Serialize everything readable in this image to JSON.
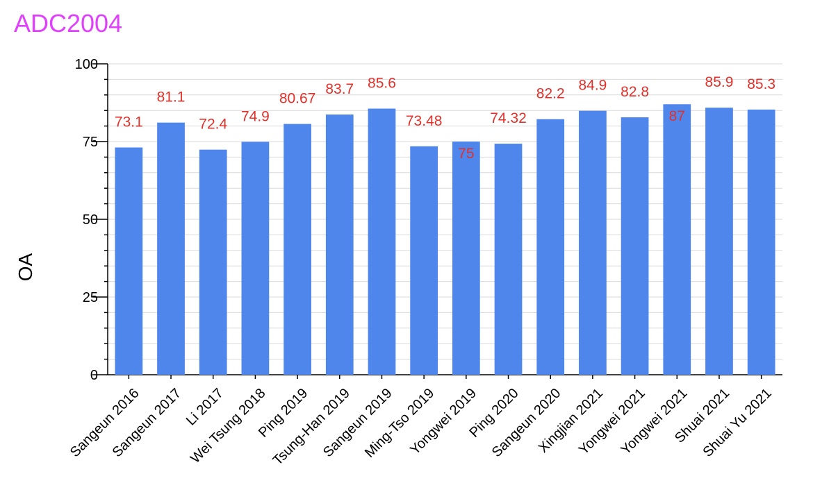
{
  "colors": {
    "title": "#e040fb",
    "bar": "#4f86ec",
    "data_label": "#e0312b",
    "grid": "#d9d9d9",
    "axis": "#000000"
  },
  "chart_data": {
    "type": "bar",
    "title": "ADC2004",
    "xlabel": "",
    "ylabel": "OA",
    "ylim": [
      0,
      100
    ],
    "yticks": [
      0,
      25,
      50,
      75,
      100
    ],
    "grid": true,
    "legend": "none",
    "categories": [
      "Sangeun 2016",
      "Sangeun 2017",
      "Li 2017",
      "Wei Tsung 2018",
      "Ping 2019",
      "Tsung-Han 2019",
      "Sangeun 2019",
      "Ming-Tso 2019",
      "Yongwei 2019",
      "Ping 2020",
      "Sangeun 2020",
      "Xingjian 2021",
      "Yongwei 2021",
      "Yongwei 2021",
      "Shuai 2021",
      "Shuai Yu 2021"
    ],
    "values": [
      73.1,
      81.1,
      72.4,
      74.9,
      80.67,
      83.7,
      85.6,
      73.48,
      75,
      74.32,
      82.2,
      84.9,
      82.8,
      87,
      85.9,
      85.3
    ],
    "data_labels": [
      "73.1",
      "81.1",
      "72.4",
      "74.9",
      "80.67",
      "83.7",
      "85.6",
      "73.48",
      "75",
      "74.32",
      "82.2",
      "84.9",
      "82.8",
      "87",
      "85.9",
      "85.3"
    ]
  }
}
